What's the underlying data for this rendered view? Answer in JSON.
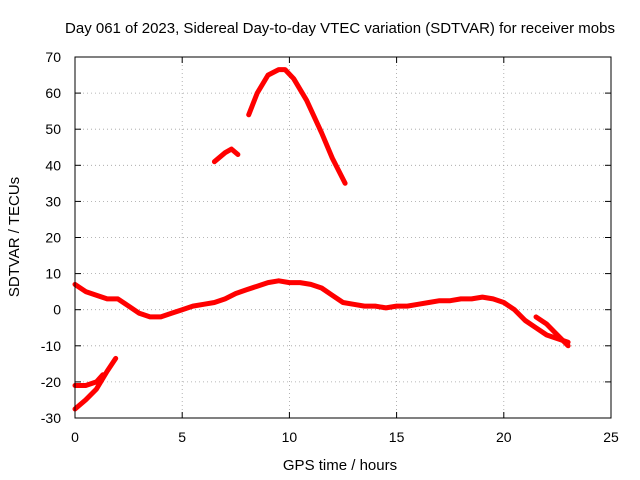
{
  "chart_data": {
    "type": "line",
    "title": "Day 061 of 2023, Sidereal Day-to-day VTEC variation (SDTVAR) for receiver mobs",
    "xlabel": "GPS time / hours",
    "ylabel": "SDTVAR / TECUs",
    "xlim": [
      0,
      25
    ],
    "ylim": [
      -30,
      70
    ],
    "xticks": [
      0,
      5,
      10,
      15,
      20,
      25
    ],
    "yticks": [
      -30,
      -20,
      -10,
      0,
      10,
      20,
      30,
      40,
      50,
      60,
      70
    ],
    "grid": true,
    "color": "#ff0000",
    "series": [
      {
        "name": "main-trace",
        "x": [
          0,
          0.5,
          1,
          1.5,
          2,
          2.5,
          3,
          3.5,
          4,
          4.5,
          5,
          5.5,
          6,
          6.5,
          7,
          7.5,
          8,
          8.5,
          9,
          9.5,
          10,
          10.5,
          11,
          11.5,
          12,
          12.5,
          13,
          13.5,
          14,
          14.5,
          15,
          15.5,
          16,
          16.5,
          17,
          17.5,
          18,
          18.5,
          19,
          19.5,
          20,
          20.5,
          21,
          21.5,
          22,
          22.5,
          23
        ],
        "y": [
          7,
          5,
          4,
          3,
          3,
          1,
          -1,
          -2,
          -2,
          -1,
          0,
          1,
          1.5,
          2,
          3,
          4.5,
          5.5,
          6.5,
          7.5,
          8,
          7.5,
          7.5,
          7,
          6,
          4,
          2,
          1.5,
          1,
          1,
          0.5,
          1,
          1,
          1.5,
          2,
          2.5,
          2.5,
          3,
          3,
          3.5,
          3,
          2,
          0,
          -3,
          -5,
          -7,
          -8,
          -9
        ]
      },
      {
        "name": "tail-branch",
        "x": [
          21.5,
          22,
          22.5,
          23
        ],
        "y": [
          -2,
          -4,
          -7,
          -10
        ]
      },
      {
        "name": "early-lower",
        "x": [
          0,
          0.5,
          1,
          1.5,
          1.9
        ],
        "y": [
          -27.5,
          -25,
          -22,
          -17,
          -13.5
        ]
      },
      {
        "name": "early-flat",
        "x": [
          0,
          0.5,
          1,
          1.3
        ],
        "y": [
          -21,
          -21,
          -20,
          -18
        ]
      },
      {
        "name": "short-arc",
        "x": [
          6.5,
          7,
          7.3,
          7.6
        ],
        "y": [
          41,
          43.5,
          44.5,
          43
        ]
      },
      {
        "name": "high-arc",
        "x": [
          8.1,
          8.5,
          9,
          9.5,
          9.8,
          10.2,
          10.8,
          11.5,
          12,
          12.6
        ],
        "y": [
          54,
          60,
          65,
          66.5,
          66.5,
          64,
          58,
          49,
          42,
          35
        ]
      }
    ]
  }
}
